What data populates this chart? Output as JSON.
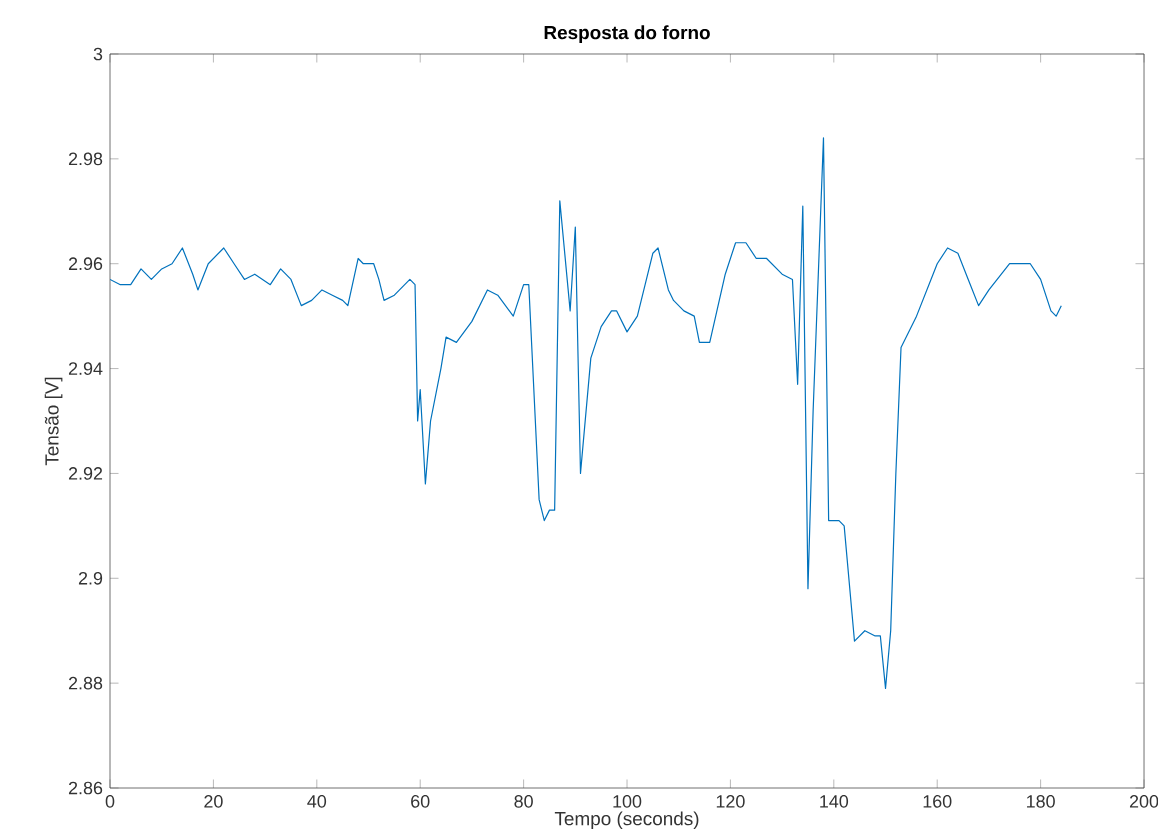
{
  "chart_data": {
    "type": "line",
    "title": "Resposta do forno",
    "xlabel": "Tempo (seconds)",
    "ylabel": "Tensão [V]",
    "xlim": [
      0,
      200
    ],
    "xticks": [
      0,
      20,
      40,
      60,
      80,
      100,
      120,
      140,
      160,
      180,
      200
    ],
    "ylim": [
      2.86,
      3
    ],
    "yticks": [
      2.86,
      2.88,
      2.9,
      2.92,
      2.94,
      2.96,
      2.98,
      3
    ],
    "grid": false,
    "series": [
      {
        "color": "#0072bd",
        "x": [
          0,
          2,
          4,
          6,
          8,
          10,
          12,
          14,
          16,
          17,
          19,
          22,
          24,
          26,
          28,
          31,
          33,
          35,
          37,
          39,
          41,
          43,
          45,
          46,
          48,
          49,
          51,
          52,
          53,
          55,
          58,
          59,
          59.5,
          60,
          61,
          62,
          64,
          65,
          67,
          70,
          73,
          75,
          78,
          80,
          81,
          83,
          84,
          85,
          86,
          87,
          89,
          90,
          91,
          93,
          95,
          97,
          98,
          100,
          102,
          105,
          106,
          108,
          109,
          111,
          113,
          114,
          116,
          119,
          121,
          123,
          125,
          127,
          130,
          132,
          133,
          134,
          135,
          136,
          137.5,
          138,
          139,
          141,
          142,
          144,
          146,
          148,
          149,
          150,
          151,
          152,
          153,
          156,
          160,
          162,
          164,
          166,
          168,
          170,
          174,
          176,
          178,
          180,
          182,
          183,
          184
        ],
        "values": [
          2.957,
          2.956,
          2.956,
          2.959,
          2.957,
          2.959,
          2.96,
          2.963,
          2.958,
          2.955,
          2.96,
          2.963,
          2.96,
          2.957,
          2.958,
          2.956,
          2.959,
          2.957,
          2.952,
          2.953,
          2.955,
          2.954,
          2.953,
          2.952,
          2.961,
          2.96,
          2.96,
          2.957,
          2.953,
          2.954,
          2.957,
          2.956,
          2.93,
          2.936,
          2.918,
          2.93,
          2.94,
          2.946,
          2.945,
          2.949,
          2.955,
          2.954,
          2.95,
          2.956,
          2.956,
          2.915,
          2.911,
          2.913,
          2.913,
          2.972,
          2.951,
          2.967,
          2.92,
          2.942,
          2.948,
          2.951,
          2.951,
          2.947,
          2.95,
          2.962,
          2.963,
          2.955,
          2.953,
          2.951,
          2.95,
          2.945,
          2.945,
          2.958,
          2.964,
          2.964,
          2.961,
          2.961,
          2.958,
          2.957,
          2.937,
          2.971,
          2.898,
          2.932,
          2.971,
          2.984,
          2.911,
          2.911,
          2.91,
          2.888,
          2.89,
          2.889,
          2.889,
          2.879,
          2.89,
          2.92,
          2.944,
          2.95,
          2.96,
          2.963,
          2.962,
          2.957,
          2.952,
          2.955,
          2.96,
          2.96,
          2.96,
          2.957,
          2.951,
          2.95,
          2.952
        ]
      }
    ]
  }
}
